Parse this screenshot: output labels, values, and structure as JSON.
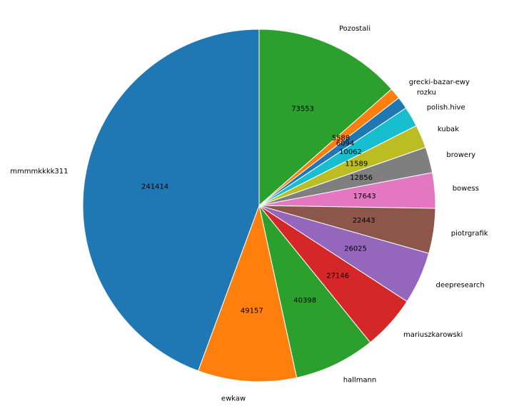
{
  "chart_data": {
    "type": "pie",
    "title": "",
    "legend": "none",
    "start_angle_deg": 90,
    "direction": "clockwise",
    "slices": [
      {
        "label": "Pozostali",
        "value": 73553,
        "color": "#2ca02c"
      },
      {
        "label": "grecki-bazar-ewy",
        "value": 5588,
        "color": "#ff7f0e"
      },
      {
        "label": "rozku",
        "value": 6094,
        "color": "#1f77b4"
      },
      {
        "label": "polish.hive",
        "value": 10062,
        "color": "#17becf"
      },
      {
        "label": "kubak",
        "value": 11589,
        "color": "#bcbd22"
      },
      {
        "label": "browery",
        "value": 12856,
        "color": "#7f7f7f"
      },
      {
        "label": "bowess",
        "value": 17643,
        "color": "#e377c2"
      },
      {
        "label": "piotrgrafik",
        "value": 22443,
        "color": "#8c564b"
      },
      {
        "label": "deepresearch",
        "value": 26025,
        "color": "#9467bd"
      },
      {
        "label": "mariuszkarowski",
        "value": 27146,
        "color": "#d62728"
      },
      {
        "label": "hallmann",
        "value": 40398,
        "color": "#2ca02c"
      },
      {
        "label": "ewkaw",
        "value": 49157,
        "color": "#ff7f0e"
      },
      {
        "label": "mmmmkkkk311",
        "value": 241414,
        "color": "#1f77b4"
      }
    ]
  }
}
